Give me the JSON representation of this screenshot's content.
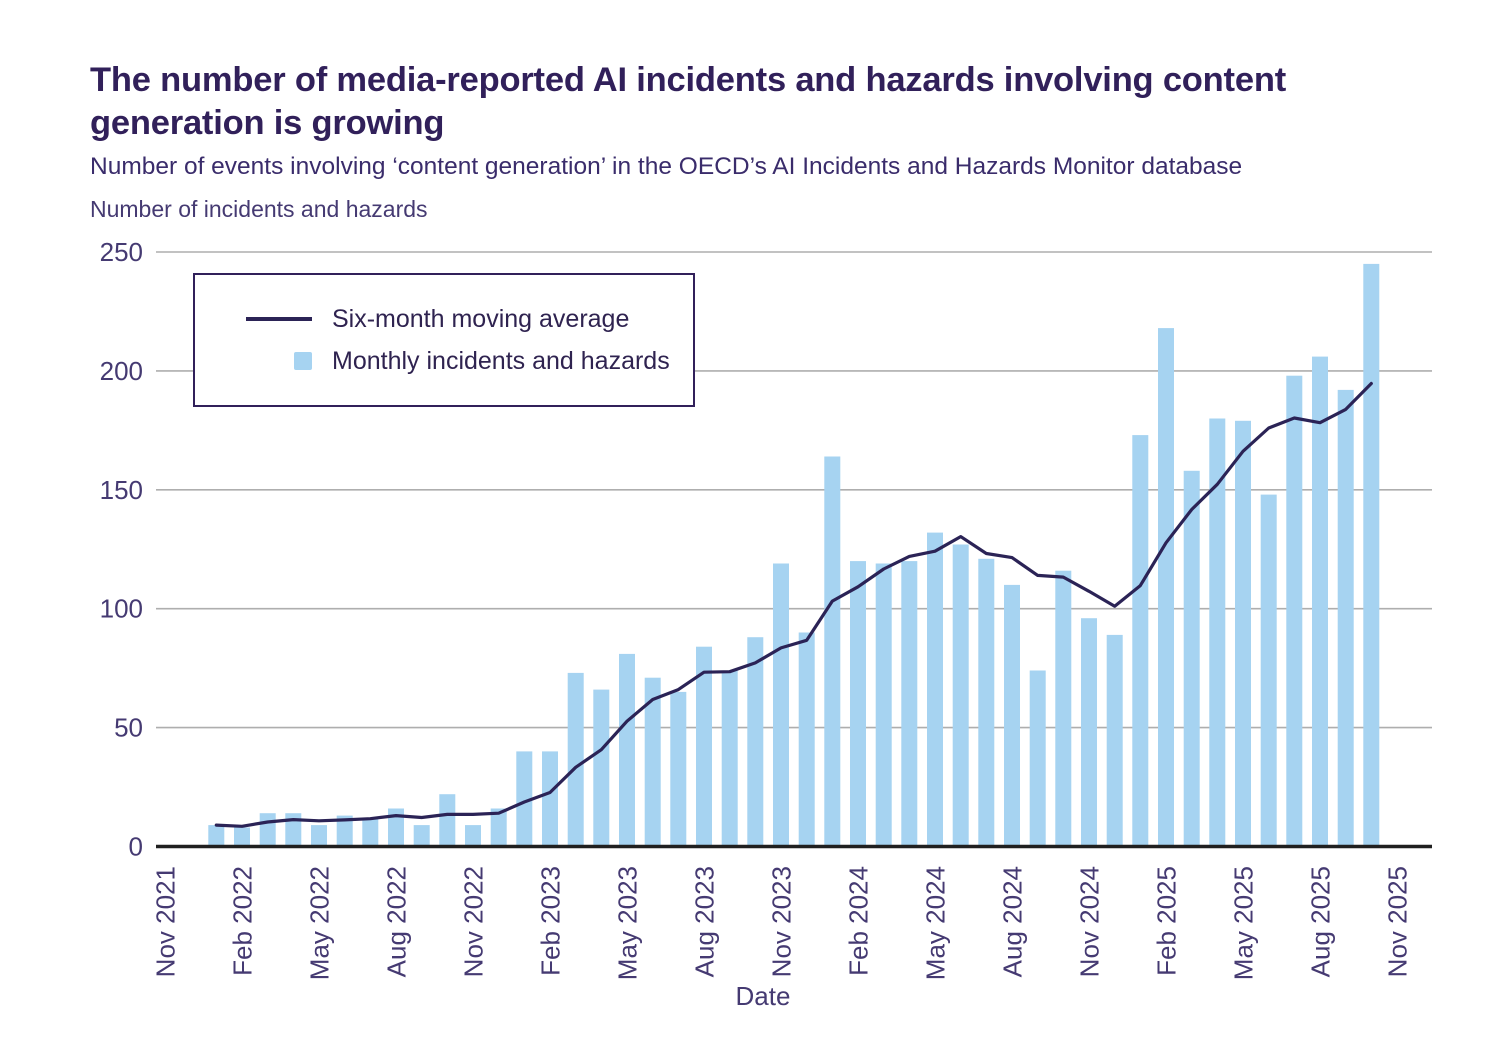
{
  "header": {
    "title": "The number of media-reported AI incidents and hazards involving content generation is growing",
    "subtitle": "Number of events involving ‘content generation’ in the OECD’s AI Incidents and Hazards Monitor database"
  },
  "chart_data": {
    "type": "bar",
    "title": "The number of media-reported AI incidents and hazards involving content generation is growing",
    "subtitle": "Number of events involving ‘content generation’ in the OECD’s AI Incidents and Hazards Monitor database",
    "y_axis_title": "Number of incidents and hazards",
    "x_axis_title": "Date",
    "ylim": [
      0,
      250
    ],
    "y_ticks": [
      0,
      50,
      100,
      150,
      200,
      250
    ],
    "grid": true,
    "legend_position": "top-left",
    "x_tick_labels": [
      "Nov 2021",
      "Feb 2022",
      "May 2022",
      "Aug 2022",
      "Nov 2022",
      "Feb 2023",
      "May 2023",
      "Aug 2023",
      "Nov 2023",
      "Feb 2024",
      "May 2024",
      "Aug 2024",
      "Nov 2024",
      "Feb 2025",
      "May 2025",
      "Aug 2025",
      "Nov 2025"
    ],
    "axis_start_month": "Nov 2021",
    "first_data_month_offset": 2,
    "months": [
      "Jan 2022",
      "Feb 2022",
      "Mar 2022",
      "Apr 2022",
      "May 2022",
      "Jun 2022",
      "Jul 2022",
      "Aug 2022",
      "Sep 2022",
      "Oct 2022",
      "Nov 2022",
      "Dec 2022",
      "Jan 2023",
      "Feb 2023",
      "Mar 2023",
      "Apr 2023",
      "May 2023",
      "Jun 2023",
      "Jul 2023",
      "Aug 2023",
      "Sep 2023",
      "Oct 2023",
      "Nov 2023",
      "Dec 2023",
      "Jan 2024",
      "Feb 2024",
      "Mar 2024",
      "Apr 2024",
      "May 2024",
      "Jun 2024",
      "Jul 2024",
      "Aug 2024",
      "Sep 2024",
      "Oct 2024",
      "Nov 2024",
      "Dec 2024",
      "Jan 2025",
      "Feb 2025",
      "Mar 2025",
      "Apr 2025",
      "May 2025",
      "Jun 2025",
      "Jul 2025",
      "Aug 2025",
      "Sep 2025",
      "Oct 2025"
    ],
    "series": [
      {
        "name": "Monthly incidents and hazards",
        "type": "bar",
        "values": [
          9,
          8,
          14,
          14,
          9,
          13,
          12,
          16,
          9,
          22,
          9,
          16,
          40,
          40,
          73,
          66,
          81,
          71,
          65,
          84,
          74,
          88,
          119,
          90,
          164,
          120,
          119,
          120,
          132,
          127,
          121,
          110,
          74,
          116,
          96,
          89,
          173,
          218,
          158,
          180,
          179,
          148,
          198,
          206,
          192,
          245
        ]
      },
      {
        "name": "Six-month moving average",
        "type": "line",
        "values": [
          9,
          8.5,
          10.3,
          11.3,
          10.8,
          11.2,
          11.7,
          13,
          12.2,
          13.5,
          13.5,
          14,
          18.7,
          22.7,
          33.3,
          40.7,
          52.7,
          61.8,
          66,
          73.3,
          73.5,
          77.2,
          83.5,
          86.7,
          103.2,
          109.2,
          116.7,
          122,
          124.2,
          130.3,
          123.2,
          121.5,
          114,
          113.3,
          107.3,
          101,
          109.7,
          127.7,
          141.7,
          152.3,
          166.2,
          176,
          180.2,
          178.2,
          183.8,
          194.7
        ]
      }
    ],
    "legend": [
      {
        "label": "Six-month moving average",
        "swatch": "line"
      },
      {
        "label": "Monthly incidents and hazards",
        "swatch": "square"
      }
    ],
    "colors": {
      "bar": "#A6D3F1",
      "line": "#2B2356",
      "grid": "#AEAEAE",
      "axis_line": "#202020",
      "axis_text": "#453A72",
      "title": "#31205A",
      "subtitle": "#3A2C6B",
      "legend_text": "#2F2350",
      "legend_border": "#31205A"
    }
  }
}
